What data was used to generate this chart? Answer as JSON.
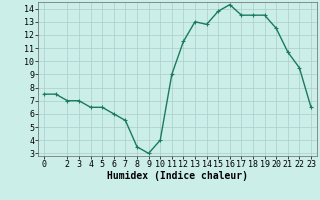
{
  "x": [
    0,
    1,
    2,
    3,
    4,
    5,
    6,
    7,
    8,
    9,
    10,
    11,
    12,
    13,
    14,
    15,
    16,
    17,
    18,
    19,
    20,
    21,
    22,
    23
  ],
  "y": [
    7.5,
    7.5,
    7.0,
    7.0,
    6.5,
    6.5,
    6.0,
    5.5,
    3.5,
    3.0,
    4.0,
    9.0,
    11.5,
    13.0,
    12.8,
    13.8,
    14.3,
    13.5,
    13.5,
    13.5,
    12.5,
    10.7,
    9.5,
    6.5
  ],
  "line_color": "#1a7a5e",
  "marker": "+",
  "marker_size": 3,
  "bg_color": "#cceee8",
  "grid_color": "#aacccc",
  "xlabel": "Humidex (Indice chaleur)",
  "xlim": [
    -0.5,
    23.5
  ],
  "ylim": [
    2.8,
    14.5
  ],
  "yticks": [
    3,
    4,
    5,
    6,
    7,
    8,
    9,
    10,
    11,
    12,
    13,
    14
  ],
  "xticks": [
    0,
    2,
    3,
    4,
    5,
    6,
    7,
    8,
    9,
    10,
    11,
    12,
    13,
    14,
    15,
    16,
    17,
    18,
    19,
    20,
    21,
    22,
    23
  ],
  "xlabel_fontsize": 7,
  "tick_fontsize": 6,
  "linewidth": 1.0,
  "markeredgewidth": 0.8
}
